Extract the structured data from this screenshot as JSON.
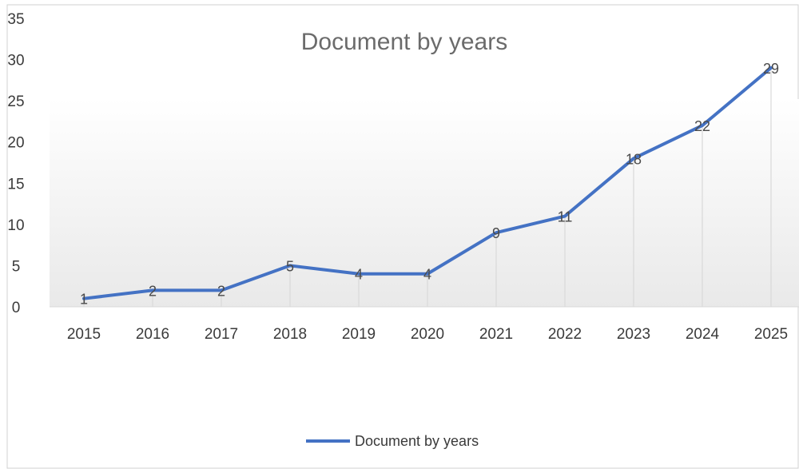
{
  "chart_data": {
    "type": "line",
    "title": "Document by years",
    "categories": [
      "2015",
      "2016",
      "2017",
      "2018",
      "2019",
      "2020",
      "2021",
      "2022",
      "2023",
      "2024",
      "2025"
    ],
    "series": [
      {
        "name": "Document by years",
        "values": [
          1,
          2,
          2,
          5,
          4,
          4,
          9,
          11,
          18,
          22,
          29
        ],
        "color": "#4472C4"
      }
    ],
    "ylim": [
      0,
      35
    ],
    "yticks": [
      0,
      5,
      10,
      15,
      20,
      25,
      30,
      35
    ],
    "xlabel": "",
    "ylabel": "",
    "grid": false,
    "drop_lines": true,
    "data_labels": true,
    "legend": {
      "position": "bottom",
      "entries": [
        "Document by years"
      ]
    },
    "colors": {
      "line": "#4472C4",
      "plot_gradient_top": "#ffffff",
      "plot_gradient_bottom": "#e9e9e9",
      "border": "#d0d0d0",
      "drop_line": "#d9d9d9"
    }
  }
}
